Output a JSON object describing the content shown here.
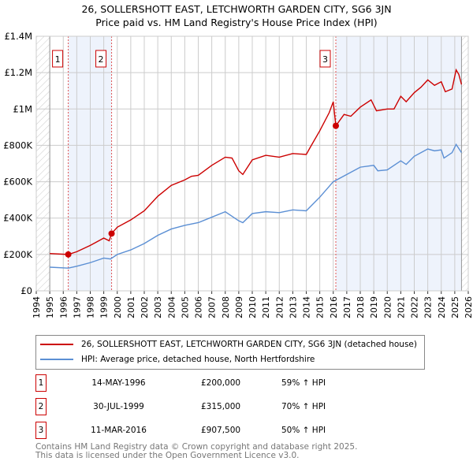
{
  "title": "26, SOLLERSHOTT EAST, LETCHWORTH GARDEN CITY, SG6 3JN",
  "subtitle": "Price paid vs. HM Land Registry's House Price Index (HPI)",
  "chart_data": {
    "type": "line",
    "xlim": [
      1994,
      2026
    ],
    "ylim": [
      0,
      1400000
    ],
    "x_ticks": [
      "1994",
      "1995",
      "1996",
      "1997",
      "1998",
      "1999",
      "2000",
      "2001",
      "2002",
      "2003",
      "2004",
      "2005",
      "2006",
      "2007",
      "2008",
      "2009",
      "2010",
      "2011",
      "2012",
      "2013",
      "2014",
      "2015",
      "2016",
      "2017",
      "2018",
      "2019",
      "2020",
      "2021",
      "2022",
      "2023",
      "2024",
      "2025",
      "2026"
    ],
    "y_ticks": [
      {
        "v": 0,
        "label": "£0"
      },
      {
        "v": 200000,
        "label": "£200K"
      },
      {
        "v": 400000,
        "label": "£400K"
      },
      {
        "v": 600000,
        "label": "£600K"
      },
      {
        "v": 800000,
        "label": "£800K"
      },
      {
        "v": 1000000,
        "label": "£1M"
      },
      {
        "v": 1200000,
        "label": "£1.2M"
      },
      {
        "v": 1400000,
        "label": "£1.4M"
      }
    ],
    "grid": true,
    "data_range": [
      1995,
      2025.5
    ],
    "shaded_ranges": [
      [
        1996.37,
        1999.58
      ],
      [
        2016.19,
        2025.5
      ]
    ],
    "series": [
      {
        "name": "26, SOLLERSHOTT EAST, LETCHWORTH GARDEN CITY, SG6 3JN (detached house)",
        "color": "#cc0000",
        "x": [
          1995,
          1996.37,
          1997,
          1998,
          1999,
          1999.4,
          1999.58,
          2000,
          2001,
          2002,
          2003,
          2004,
          2005,
          2005.5,
          2006,
          2007,
          2008,
          2008.5,
          2009,
          2009.3,
          2010,
          2011,
          2012,
          2013,
          2014,
          2014.3,
          2015,
          2015.7,
          2016.0,
          2016.19,
          2016.8,
          2017.3,
          2018,
          2018.8,
          2019.2,
          2020,
          2020.5,
          2021,
          2021.4,
          2022,
          2022.5,
          2023,
          2023.5,
          2024,
          2024.3,
          2024.8,
          2025.1,
          2025.3,
          2025.5
        ],
        "y": [
          205000,
          200000,
          215000,
          250000,
          290000,
          275000,
          315000,
          350000,
          390000,
          440000,
          520000,
          580000,
          610000,
          630000,
          635000,
          690000,
          735000,
          730000,
          660000,
          640000,
          720000,
          745000,
          735000,
          755000,
          750000,
          790000,
          880000,
          980000,
          1040000,
          907500,
          970000,
          960000,
          1010000,
          1050000,
          990000,
          1000000,
          1000000,
          1070000,
          1040000,
          1090000,
          1120000,
          1160000,
          1130000,
          1150000,
          1095000,
          1110000,
          1215000,
          1190000,
          1135000
        ]
      },
      {
        "name": "HPI: Average price, detached house, North Hertfordshire",
        "color": "#5b8fd4",
        "x": [
          1995,
          1996.37,
          1997,
          1998,
          1999,
          1999.5,
          2000,
          2001,
          2002,
          2003,
          2004,
          2005,
          2006,
          2007,
          2008,
          2009,
          2009.3,
          2010,
          2011,
          2012,
          2013,
          2014,
          2015,
          2016,
          2017,
          2018,
          2019,
          2019.3,
          2020,
          2021,
          2021.4,
          2022,
          2023,
          2023.5,
          2024,
          2024.2,
          2024.8,
          2025.1,
          2025.5
        ],
        "y": [
          130000,
          125000,
          135000,
          155000,
          180000,
          175000,
          200000,
          225000,
          260000,
          305000,
          340000,
          360000,
          375000,
          405000,
          435000,
          385000,
          375000,
          425000,
          435000,
          430000,
          445000,
          440000,
          515000,
          600000,
          640000,
          680000,
          690000,
          660000,
          665000,
          715000,
          695000,
          740000,
          780000,
          770000,
          775000,
          730000,
          760000,
          805000,
          760000
        ]
      }
    ],
    "sales": [
      {
        "label": "1",
        "x": 1996.37,
        "y": 200000,
        "date": "14-MAY-1996",
        "price": "£200,000",
        "hpi": "59% ↑ HPI"
      },
      {
        "label": "2",
        "x": 1999.58,
        "y": 315000,
        "date": "30-JUL-1999",
        "price": "£315,000",
        "hpi": "70% ↑ HPI"
      },
      {
        "label": "3",
        "x": 2016.19,
        "y": 907500,
        "date": "11-MAR-2016",
        "price": "£907,500",
        "hpi": "50% ↑ HPI"
      }
    ]
  },
  "legend": {
    "red": "26, SOLLERSHOTT EAST, LETCHWORTH GARDEN CITY, SG6 3JN (detached house)",
    "blue": "HPI: Average price, detached house, North Hertfordshire"
  },
  "footer": {
    "line1": "Contains HM Land Registry data © Crown copyright and database right 2025.",
    "line2": "This data is licensed under the Open Government Licence v3.0."
  }
}
